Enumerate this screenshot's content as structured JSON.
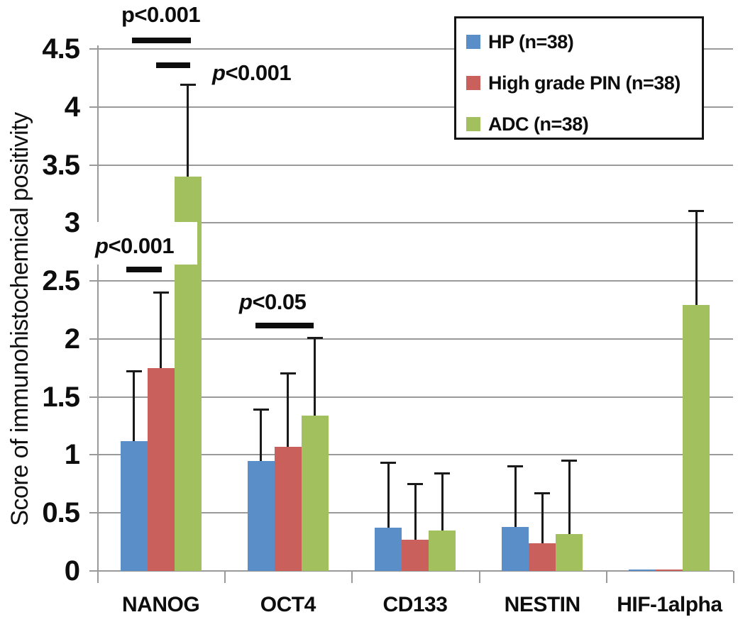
{
  "chart_data": {
    "type": "bar",
    "title": "",
    "ylabel": "Score of immunohistochemical positivity",
    "xlabel": "",
    "categories": [
      "NANOG",
      "OCT4",
      "CD133",
      "NESTIN",
      "HIF-1alpha"
    ],
    "series": [
      {
        "name": "HP (n=38)",
        "color": "#5a8ec8",
        "values": [
          1.12,
          0.95,
          0.37,
          0.38,
          0.01
        ],
        "error_plus": [
          0.6,
          0.44,
          0.56,
          0.52,
          0
        ]
      },
      {
        "name": "High grade PIN (n=38)",
        "color": "#c9605c",
        "values": [
          1.75,
          1.07,
          0.27,
          0.24,
          0.01
        ],
        "error_plus": [
          0.65,
          0.63,
          0.48,
          0.43,
          0
        ]
      },
      {
        "name": "ADC (n=38)",
        "color": "#a3c05f",
        "values": [
          3.4,
          1.34,
          0.35,
          0.32,
          2.29
        ],
        "error_plus": [
          0.79,
          0.67,
          0.49,
          0.63,
          0.81
        ]
      }
    ],
    "ylim": [
      0,
      4.5
    ],
    "ytick_labels": [
      "0",
      "0.5",
      "1",
      "1.5",
      "2",
      "2.5",
      "3",
      "3.5",
      "4",
      "4.5"
    ],
    "grid": true,
    "legend_position": "top-right",
    "error_bars": "upper direction only, capped",
    "annotations": [
      {
        "p": "p",
        "rest": "<0.001",
        "italic_p": false,
        "group": "NANOG",
        "compares": [
          "HP",
          "ADC"
        ]
      },
      {
        "p": "p",
        "rest": "<0.001",
        "italic_p": true,
        "group": "NANOG",
        "compares": [
          "High grade PIN",
          "ADC"
        ]
      },
      {
        "p": "p",
        "rest": "<0.001",
        "italic_p": true,
        "group": "NANOG",
        "compares": [
          "HP",
          "High grade PIN"
        ]
      },
      {
        "p": "p",
        "rest": "<0.05",
        "italic_p": true,
        "group": "OCT4",
        "compares": [
          "HP",
          "ADC"
        ]
      }
    ]
  }
}
